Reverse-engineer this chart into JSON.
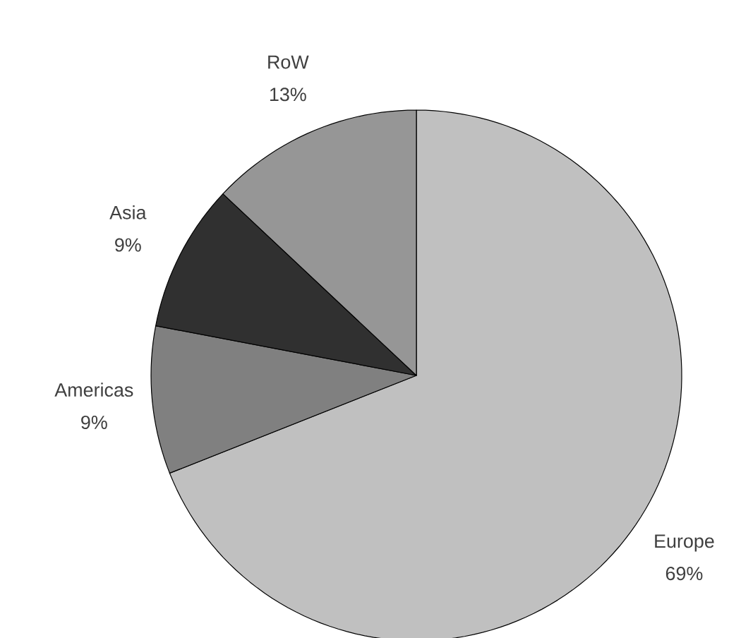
{
  "chart_data": {
    "type": "pie",
    "categories": [
      "Europe",
      "Americas",
      "Asia",
      "RoW"
    ],
    "values": [
      69,
      9,
      9,
      13
    ],
    "value_labels": [
      "69%",
      "9%",
      "9%",
      "13%"
    ],
    "colors": [
      "#c0c0c0",
      "#808080",
      "#303030",
      "#969696"
    ]
  }
}
